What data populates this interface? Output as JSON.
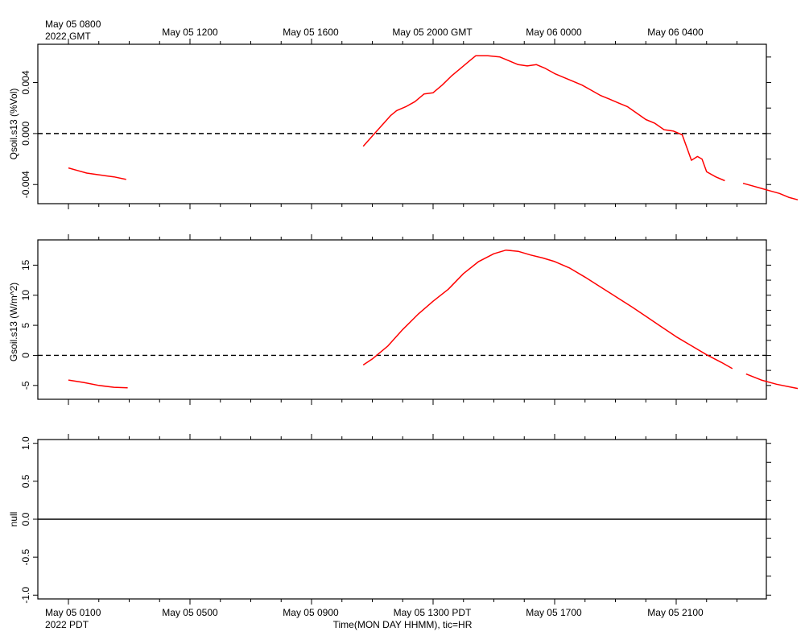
{
  "top_axis": {
    "first_label_line1": "May 05 0800",
    "first_label_line2": "2022 GMT",
    "labels": [
      "May 05 1200",
      "May 05 1600",
      "May 05 2000 GMT",
      "May 06 0000",
      "May 06 0400"
    ]
  },
  "bottom_axis": {
    "first_label_line1": "May 05 0100",
    "first_label_line2": "2022 PDT",
    "labels": [
      "May 05 0500",
      "May 05 0900",
      "May 05 1300 PDT",
      "May 05 1700",
      "May 05 2100"
    ],
    "title": "Time(MON DAY HHMM), tic=HR"
  },
  "colors": {
    "series": "#ff0000",
    "axes": "#000000",
    "background": "#ffffff"
  },
  "chart_data": [
    {
      "type": "line",
      "ylabel": "Qsoil.s13 (%Vol)",
      "x_unit": "hours after May 05 0000 PDT",
      "xlim": [
        0,
        24
      ],
      "ylim": [
        -0.0055,
        0.007
      ],
      "ytick_values": [
        -0.004,
        0.0,
        0.004
      ],
      "ytick_labels": [
        "-0.004",
        "0.000",
        "0.004"
      ],
      "zero_line": "dashed",
      "segments": [
        [
          [
            0.0,
            -0.0027
          ],
          [
            0.3,
            -0.0029
          ],
          [
            0.6,
            -0.0031
          ],
          [
            0.9,
            -0.0032
          ],
          [
            1.2,
            -0.0033
          ],
          [
            1.5,
            -0.0034
          ],
          [
            1.9,
            -0.0036
          ]
        ],
        [
          [
            9.7,
            -0.001
          ],
          [
            10.0,
            -0.0002
          ],
          [
            10.3,
            0.0006
          ],
          [
            10.6,
            0.0014
          ],
          [
            10.8,
            0.0018
          ],
          [
            11.1,
            0.0021
          ],
          [
            11.4,
            0.0025
          ],
          [
            11.7,
            0.0031
          ],
          [
            12.0,
            0.0032
          ],
          [
            12.3,
            0.0038
          ],
          [
            12.6,
            0.0045
          ],
          [
            12.9,
            0.0051
          ],
          [
            13.2,
            0.0057
          ],
          [
            13.4,
            0.0061
          ],
          [
            13.8,
            0.0061
          ],
          [
            14.2,
            0.006
          ],
          [
            14.5,
            0.0057
          ],
          [
            14.8,
            0.0054
          ],
          [
            15.1,
            0.0053
          ],
          [
            15.4,
            0.0054
          ],
          [
            15.7,
            0.0051
          ],
          [
            16.0,
            0.0047
          ],
          [
            16.3,
            0.0044
          ],
          [
            16.6,
            0.0041
          ],
          [
            16.9,
            0.0038
          ],
          [
            17.2,
            0.0034
          ],
          [
            17.5,
            0.003
          ],
          [
            17.8,
            0.0027
          ],
          [
            18.1,
            0.0024
          ],
          [
            18.4,
            0.0021
          ],
          [
            18.7,
            0.0016
          ],
          [
            19.0,
            0.0011
          ],
          [
            19.3,
            0.0008
          ],
          [
            19.6,
            0.0003
          ],
          [
            19.9,
            0.0002
          ],
          [
            20.2,
            -0.0001
          ],
          [
            20.35,
            -0.0011
          ],
          [
            20.5,
            -0.0021
          ],
          [
            20.7,
            -0.0018
          ],
          [
            20.85,
            -0.002
          ],
          [
            21.0,
            -0.003
          ],
          [
            21.3,
            -0.0034
          ],
          [
            21.6,
            -0.0037
          ]
        ],
        [
          [
            22.2,
            -0.0039
          ],
          [
            22.5,
            -0.0041
          ],
          [
            22.8,
            -0.0043
          ],
          [
            23.1,
            -0.0045
          ],
          [
            23.4,
            -0.0047
          ],
          [
            23.7,
            -0.005
          ],
          [
            24.0,
            -0.0052
          ]
        ]
      ]
    },
    {
      "type": "line",
      "ylabel": "Gsoil.s13 (W/m^2)",
      "x_unit": "hours after May 05 0000 PDT",
      "xlim": [
        0,
        24
      ],
      "ylim": [
        -7.3,
        19.2
      ],
      "ytick_values": [
        -5,
        0,
        5,
        10,
        15
      ],
      "ytick_labels": [
        "-5",
        "0",
        "5",
        "10",
        "15"
      ],
      "zero_line": "dashed",
      "segments": [
        [
          [
            0.0,
            -4.1
          ],
          [
            0.5,
            -4.5
          ],
          [
            1.0,
            -5.0
          ],
          [
            1.5,
            -5.3
          ],
          [
            1.95,
            -5.4
          ]
        ],
        [
          [
            9.7,
            -1.6
          ],
          [
            10.0,
            -0.6
          ],
          [
            10.5,
            1.5
          ],
          [
            11.0,
            4.3
          ],
          [
            11.5,
            6.8
          ],
          [
            12.0,
            9.0
          ],
          [
            12.5,
            11.0
          ],
          [
            13.0,
            13.6
          ],
          [
            13.5,
            15.6
          ],
          [
            14.0,
            16.9
          ],
          [
            14.4,
            17.5
          ],
          [
            14.8,
            17.3
          ],
          [
            15.2,
            16.7
          ],
          [
            15.6,
            16.2
          ],
          [
            16.0,
            15.6
          ],
          [
            16.5,
            14.5
          ],
          [
            17.0,
            13.0
          ],
          [
            17.5,
            11.4
          ],
          [
            18.0,
            9.8
          ],
          [
            18.5,
            8.2
          ],
          [
            19.0,
            6.5
          ],
          [
            19.5,
            4.8
          ],
          [
            20.0,
            3.1
          ],
          [
            20.5,
            1.6
          ],
          [
            21.0,
            0.1
          ],
          [
            21.5,
            -1.2
          ],
          [
            21.85,
            -2.2
          ]
        ],
        [
          [
            22.3,
            -3.1
          ],
          [
            22.8,
            -4.1
          ],
          [
            23.3,
            -4.8
          ],
          [
            23.8,
            -5.3
          ],
          [
            24.0,
            -5.5
          ]
        ]
      ]
    },
    {
      "type": "line",
      "ylabel": "null",
      "x_unit": "hours after May 05 0000 PDT",
      "xlim": [
        0,
        24
      ],
      "ylim": [
        -1.05,
        1.05
      ],
      "ytick_values": [
        -1.0,
        -0.5,
        0.0,
        0.5,
        1.0
      ],
      "ytick_labels": [
        "-1.0",
        "-0.5",
        "0.0",
        "0.5",
        "1.0"
      ],
      "zero_line": "solid",
      "segments": []
    }
  ]
}
